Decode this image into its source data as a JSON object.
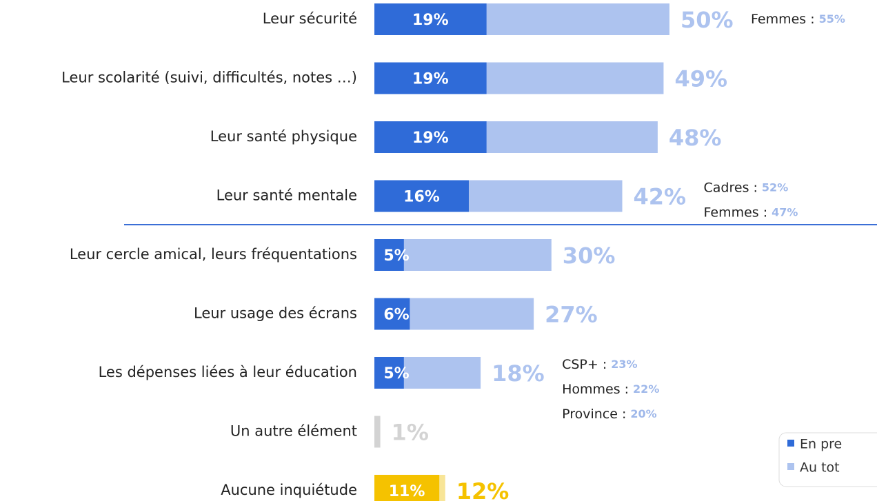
{
  "chart_data": {
    "type": "bar",
    "orientation": "horizontal",
    "categories": [
      "Leur sécurité",
      "Leur scolarité (suivi, difficultés, notes …)",
      "Leur santé physique",
      "Leur santé mentale",
      "Leur cercle amical, leurs fréquentations",
      "Leur usage des écrans",
      "Les dépenses liées à leur éducation",
      "Un autre élément",
      "Aucune inquiétude"
    ],
    "xlim": [
      0,
      50
    ],
    "series": [
      {
        "name": "En pre",
        "color": "#2f6bd8",
        "colors": [
          "#2f6bd8",
          "#2f6bd8",
          "#2f6bd8",
          "#2f6bd8",
          "#2f6bd8",
          "#2f6bd8",
          "#2f6bd8",
          null,
          "#f5c200"
        ],
        "values": [
          19,
          19,
          19,
          16,
          5,
          6,
          5,
          null,
          11
        ],
        "value_labels": [
          "19%",
          "19%",
          "19%",
          "16%",
          "5%",
          "6%",
          "5%",
          null,
          "11%"
        ]
      },
      {
        "name": "Au tot",
        "color": "#adc3ef",
        "colors": [
          "#adc3ef",
          "#adc3ef",
          "#adc3ef",
          "#adc3ef",
          "#adc3ef",
          "#adc3ef",
          "#adc3ef",
          "#d3d3d3",
          "#f8e597"
        ],
        "values": [
          50,
          49,
          48,
          42,
          30,
          27,
          18,
          1,
          12
        ],
        "value_labels": [
          "50%",
          "49%",
          "48%",
          "42%",
          "30%",
          "27%",
          "18%",
          "1%",
          "12%"
        ]
      }
    ],
    "annotations": [
      [
        {
          "text": "Femmes :",
          "value": 55,
          "label": "55%"
        }
      ],
      null,
      null,
      [
        {
          "text": "Cadres :",
          "value": 52,
          "label": "52%"
        },
        {
          "text": "Femmes :",
          "value": 47,
          "label": "47%"
        }
      ],
      null,
      null,
      [
        {
          "text": "CSP+ :",
          "value": 23,
          "label": "23%"
        },
        {
          "text": "Hommes :",
          "value": 22,
          "label": "22%"
        },
        {
          "text": "Province :",
          "value": 20,
          "label": "20%"
        }
      ],
      null,
      null
    ]
  }
}
